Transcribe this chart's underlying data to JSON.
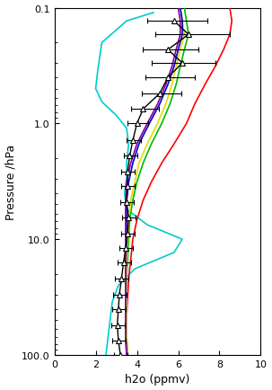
{
  "title": "",
  "xlabel": "h2o (ppmv)",
  "ylabel": "Pressure /hPa",
  "xlim": [
    0,
    10
  ],
  "ylim": [
    100.0,
    0.1
  ],
  "xticks": [
    0,
    2,
    4,
    6,
    8,
    10
  ],
  "pressure_levels": [
    0.13,
    0.17,
    0.23,
    0.3,
    0.4,
    0.55,
    0.75,
    1.0,
    1.4,
    1.9,
    2.6,
    3.5,
    4.8,
    6.5,
    9.0,
    12.0,
    16.0,
    22.0,
    30.0,
    40.0,
    55.0,
    75.0,
    100.0
  ],
  "mipas_h2o": [
    5.8,
    6.5,
    5.5,
    6.2,
    5.5,
    5.1,
    4.3,
    4.0,
    3.8,
    3.65,
    3.55,
    3.55,
    3.5,
    3.6,
    3.55,
    3.45,
    3.35,
    3.25,
    3.15,
    3.1,
    3.05,
    3.1,
    3.2
  ],
  "mipas_err_lo": [
    1.3,
    1.6,
    1.2,
    1.5,
    1.1,
    0.85,
    0.6,
    0.45,
    0.3,
    0.3,
    0.3,
    0.3,
    0.3,
    0.3,
    0.3,
    0.3,
    0.3,
    0.3,
    0.3,
    0.3,
    0.3,
    0.3,
    0.3
  ],
  "mipas_err_hi": [
    1.6,
    2.0,
    1.5,
    1.6,
    1.3,
    1.05,
    0.75,
    0.55,
    0.4,
    0.35,
    0.35,
    0.35,
    0.35,
    0.35,
    0.35,
    0.35,
    0.35,
    0.35,
    0.35,
    0.35,
    0.35,
    0.35,
    0.35
  ],
  "line_red": {
    "pressure": [
      0.1,
      0.13,
      0.17,
      0.23,
      0.32,
      0.46,
      0.68,
      1.0,
      1.5,
      2.2,
      3.2,
      4.6,
      6.8,
      10.0,
      15.0,
      22.0,
      32.0,
      47.0,
      68.0,
      100.0
    ],
    "h2o": [
      8.5,
      8.6,
      8.5,
      8.2,
      7.8,
      7.3,
      6.8,
      6.4,
      5.8,
      5.2,
      4.7,
      4.3,
      4.0,
      3.8,
      3.7,
      3.6,
      3.55,
      3.5,
      3.5,
      3.5
    ]
  },
  "line_green": {
    "pressure": [
      0.1,
      0.13,
      0.17,
      0.23,
      0.32,
      0.46,
      0.68,
      1.0,
      1.5,
      2.2,
      3.2,
      4.6,
      6.8,
      10.0,
      15.0,
      22.0,
      32.0,
      47.0,
      68.0,
      100.0
    ],
    "h2o": [
      6.3,
      6.4,
      6.5,
      6.3,
      6.1,
      5.9,
      5.6,
      5.2,
      4.7,
      4.3,
      4.0,
      3.8,
      3.65,
      3.6,
      3.55,
      3.5,
      3.5,
      3.5,
      3.5,
      3.55
    ]
  },
  "line_yellow": {
    "pressure": [
      0.1,
      0.13,
      0.17,
      0.23,
      0.32,
      0.46,
      0.68,
      1.0,
      1.5,
      2.2,
      3.2,
      4.6,
      6.8,
      10.0,
      15.0,
      22.0,
      32.0,
      47.0,
      68.0,
      100.0
    ],
    "h2o": [
      6.1,
      6.2,
      6.3,
      6.1,
      5.9,
      5.7,
      5.4,
      5.0,
      4.5,
      4.1,
      3.9,
      3.7,
      3.6,
      3.55,
      3.5,
      3.5,
      3.5,
      3.5,
      3.5,
      3.55
    ]
  },
  "line_cyan": {
    "pressure": [
      0.11,
      0.13,
      0.2,
      0.35,
      0.5,
      0.65,
      0.85,
      1.1,
      1.5,
      2.2,
      3.0,
      4.0,
      5.5,
      7.5,
      10.0,
      13.0,
      18.0,
      25.0,
      35.0,
      50.0,
      70.0,
      100.0
    ],
    "h2o": [
      4.8,
      3.5,
      2.3,
      2.1,
      2.0,
      2.3,
      3.0,
      3.5,
      3.6,
      3.5,
      3.5,
      3.4,
      3.5,
      4.5,
      6.2,
      5.8,
      3.9,
      3.1,
      2.8,
      2.7,
      2.6,
      2.5
    ]
  },
  "line_blue": {
    "pressure": [
      0.1,
      0.13,
      0.17,
      0.23,
      0.32,
      0.46,
      0.68,
      1.0,
      1.5,
      2.2,
      3.2,
      4.6,
      6.8,
      10.0,
      15.0,
      22.0,
      32.0,
      47.0,
      68.0,
      100.0
    ],
    "h2o": [
      6.1,
      6.2,
      6.2,
      6.0,
      5.8,
      5.5,
      5.1,
      4.6,
      4.1,
      3.8,
      3.6,
      3.5,
      3.5,
      3.5,
      3.45,
      3.45,
      3.45,
      3.45,
      3.45,
      3.5
    ]
  },
  "line_purple": {
    "pressure": [
      0.1,
      0.13,
      0.17,
      0.23,
      0.32,
      0.46,
      0.68,
      1.0,
      1.5,
      2.2,
      3.2,
      4.6,
      6.8,
      10.0,
      15.0,
      22.0,
      32.0,
      47.0,
      68.0,
      100.0
    ],
    "h2o": [
      6.0,
      6.1,
      6.1,
      5.9,
      5.7,
      5.4,
      5.0,
      4.5,
      4.0,
      3.7,
      3.5,
      3.45,
      3.45,
      3.45,
      3.45,
      3.45,
      3.45,
      3.45,
      3.45,
      3.5
    ]
  },
  "colors": {
    "mipas": "#000000",
    "red": "#ff0000",
    "green": "#00bb00",
    "yellow": "#dddd00",
    "cyan": "#00cccc",
    "blue": "#0000cc",
    "purple": "#880099"
  }
}
